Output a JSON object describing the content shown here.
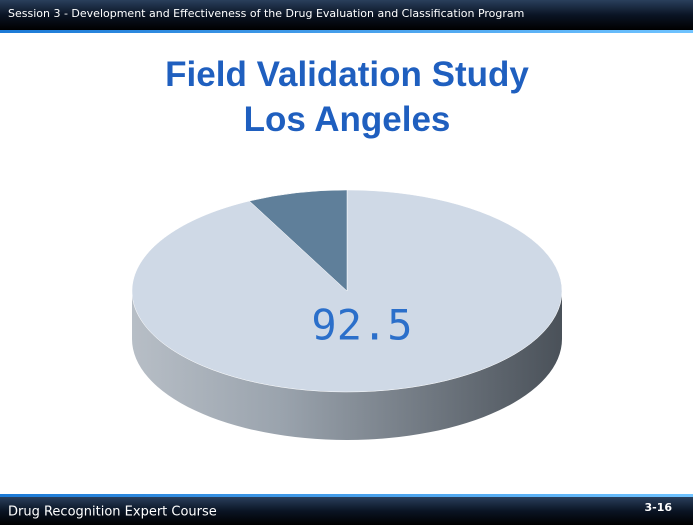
{
  "header": "Session 3 - Development and Effectiveness of the Drug Evaluation and Classification Program",
  "footer": "Drug Recognition Expert Course",
  "page_number": "3-16",
  "chart_data": {
    "type": "pie",
    "title": [
      "Field Validation Study",
      "Los Angeles"
    ],
    "values": [
      92.5,
      7.5
    ],
    "colors": [
      "#cfd9e6",
      "#5f7f9a"
    ]
  }
}
